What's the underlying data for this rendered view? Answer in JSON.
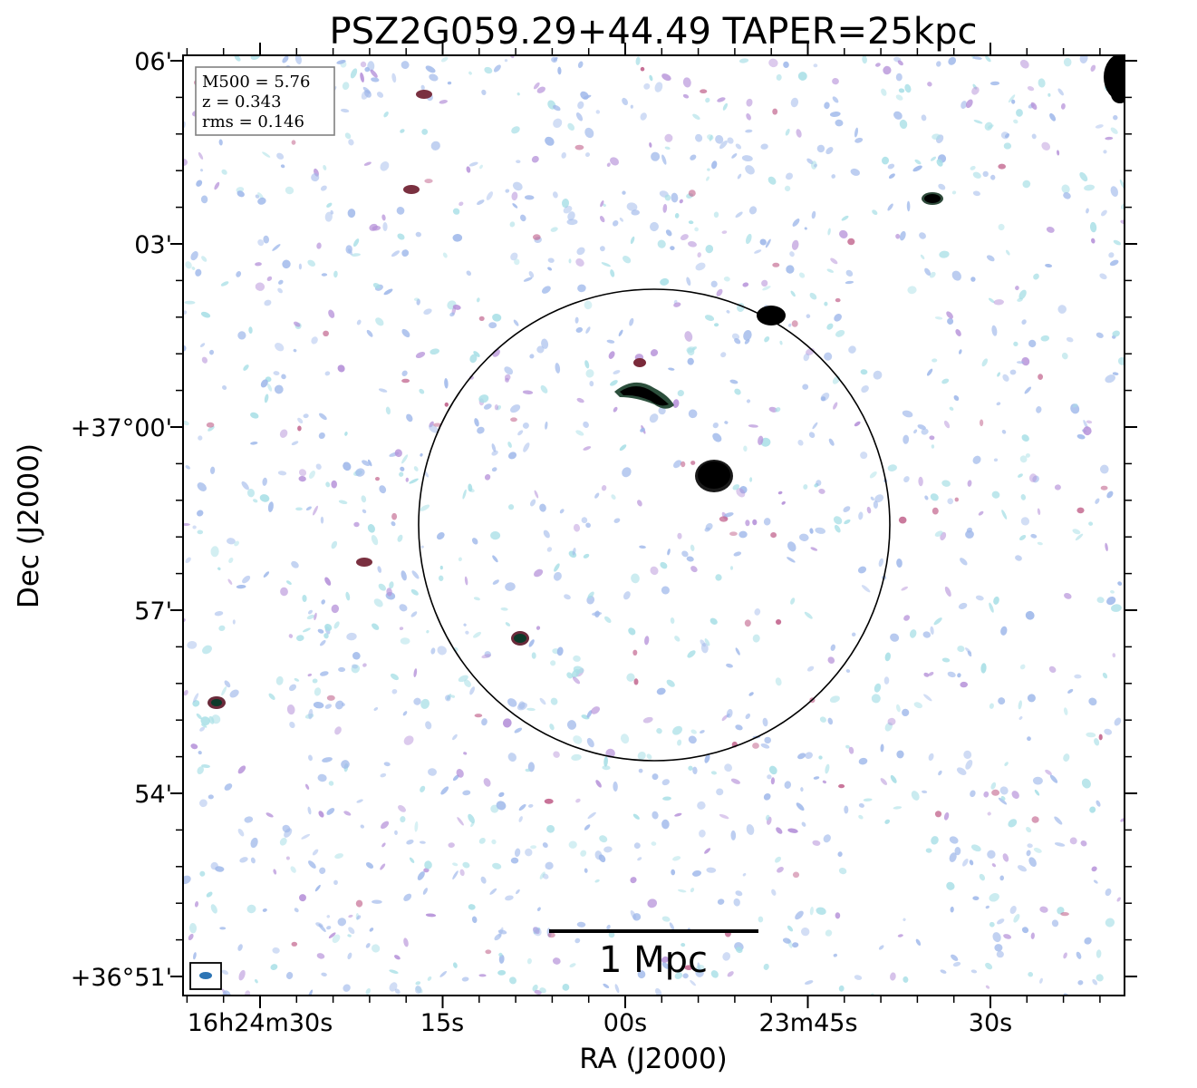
{
  "figure": {
    "title": "PSZ2G059.29+44.49 TAPER=25kpc",
    "x_label": "RA (J2000)",
    "y_label": "Dec (J2000)",
    "x_ticks": [
      "16h24m30s",
      "15s",
      "00s",
      "23m45s",
      "30s"
    ],
    "y_ticks": [
      "06'",
      "03'",
      "+37°00'",
      "57'",
      "54'",
      "+36°51'"
    ],
    "info_box": {
      "m500": "M500 = 5.76",
      "z": "z = 0.343",
      "rms": "rms = 0.146"
    },
    "scale_bar_label": "1 Mpc",
    "colors": {
      "noise_blue": "#9fb8ea",
      "noise_cyan": "#a8dfe6",
      "noise_purple": "#b48fd8",
      "noise_magenta": "#c0608a",
      "source": "#000000",
      "beam": "#2c74b4",
      "circle": "#000000"
    }
  }
}
